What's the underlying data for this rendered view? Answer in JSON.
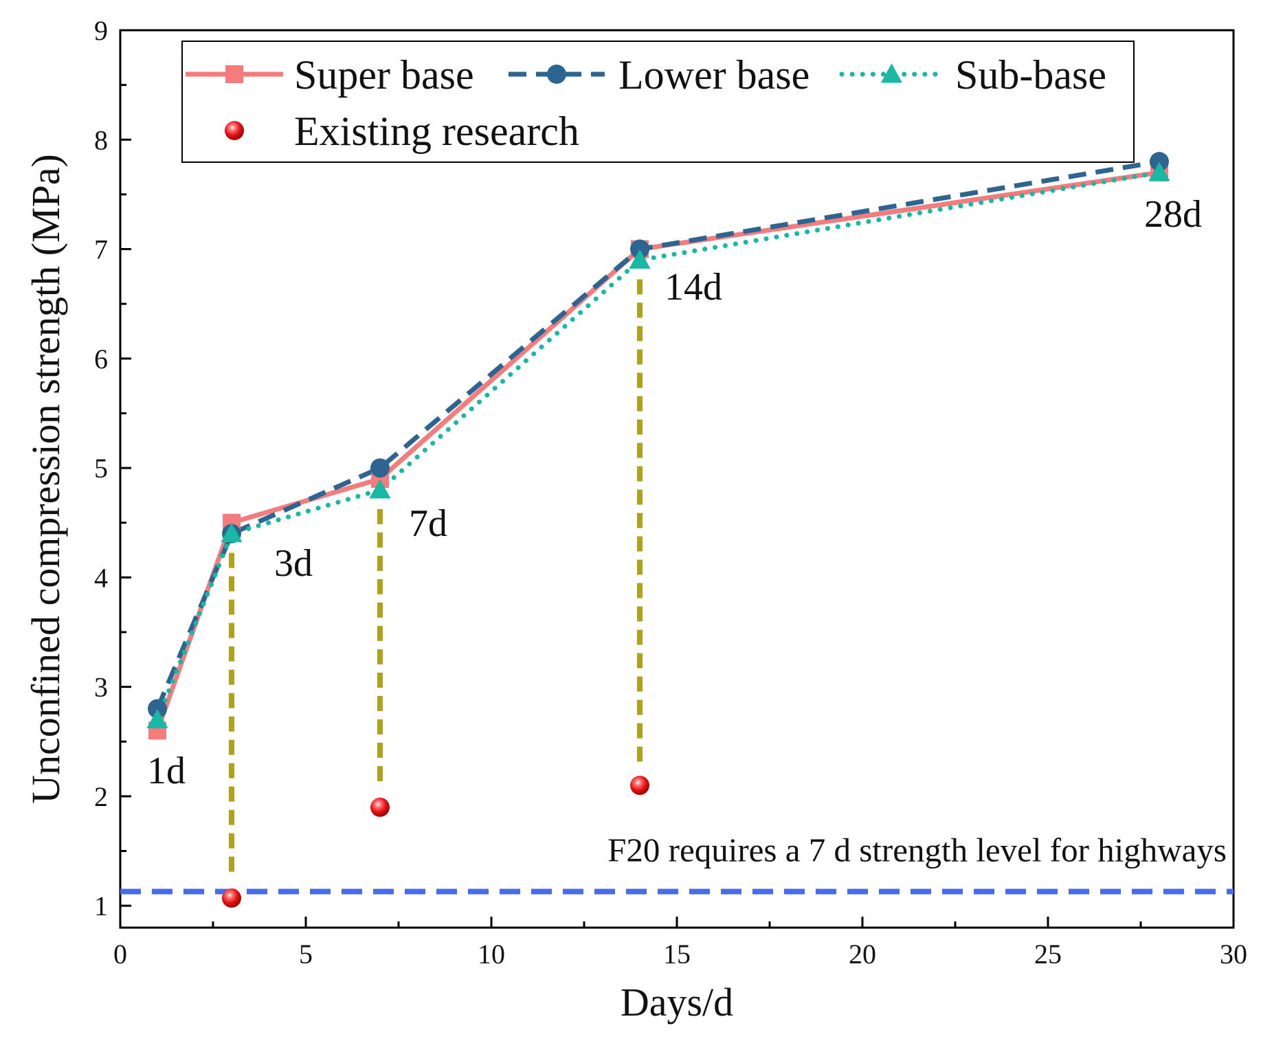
{
  "chart_data": {
    "type": "line",
    "xlabel": "Days/d",
    "ylabel": "Unconfined compression strength (MPa)",
    "xlim": [
      0,
      30
    ],
    "ylim": [
      0.8,
      9
    ],
    "xticks": [
      0,
      5,
      10,
      15,
      20,
      25,
      30
    ],
    "yticks": [
      1,
      2,
      3,
      4,
      5,
      6,
      7,
      8,
      9
    ],
    "grid": false,
    "legend_position": "top",
    "x": [
      1,
      3,
      7,
      14,
      28
    ],
    "series": [
      {
        "name": "Super base",
        "values": [
          2.6,
          4.5,
          4.9,
          7.0,
          7.7
        ],
        "color": "#f47c7c",
        "marker": "square",
        "line": "solid"
      },
      {
        "name": "Lower base",
        "values": [
          2.8,
          4.4,
          5.0,
          7.0,
          7.8
        ],
        "color": "#2c6590",
        "marker": "circle",
        "line": "dashed"
      },
      {
        "name": "Sub-base",
        "values": [
          2.7,
          4.4,
          4.8,
          6.9,
          7.7
        ],
        "color": "#18b8a4",
        "marker": "triangle",
        "line": "dotted"
      }
    ],
    "existing_research": {
      "name": "Existing research",
      "color": "#e81414",
      "points": [
        {
          "x": 3,
          "y": 1.07
        },
        {
          "x": 7,
          "y": 1.9
        },
        {
          "x": 14,
          "y": 2.1
        }
      ]
    },
    "connector_color": "#b0a21c",
    "reference_line": {
      "y": 1.13,
      "label": "F20 requires a 7 d strength level for highways",
      "color": "#4a6af0"
    },
    "point_labels": [
      {
        "x": 1,
        "text": "1d"
      },
      {
        "x": 3,
        "text": "3d"
      },
      {
        "x": 7,
        "text": "7d"
      },
      {
        "x": 14,
        "text": "14d"
      },
      {
        "x": 28,
        "text": "28d"
      }
    ]
  }
}
